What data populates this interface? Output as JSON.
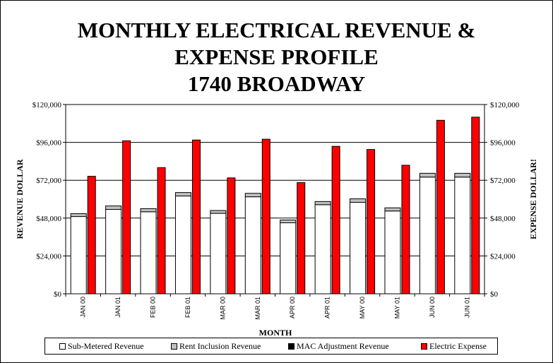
{
  "title_lines": [
    "MONTHLY ELECTRICAL REVENUE &",
    "EXPENSE PROFILE",
    "1740 BROADWAY"
  ],
  "chart_data": {
    "type": "bar",
    "title": "MONTHLY ELECTRICAL REVENUE & EXPENSE PROFILE 1740 BROADWAY",
    "xlabel": "MONTH",
    "ylabel": "REVENUE DOLLAR",
    "y2label": "EXPENSE DOLLAR!",
    "ylim": [
      0,
      120000
    ],
    "y_ticks": [
      "$0",
      "$24,000",
      "$48,000",
      "$72,000",
      "$96,000",
      "$120,000"
    ],
    "y_tick_values": [
      0,
      24000,
      48000,
      72000,
      96000,
      120000
    ],
    "categories": [
      "JAN 00",
      "JAN 01",
      "FEB 00",
      "FEB 01",
      "MAR 00",
      "MAR 01",
      "APR 00",
      "APR 01",
      "MAY 00",
      "MAY 01",
      "JUN 00",
      "JUN 01"
    ],
    "stacked_series_names": [
      "Sub-Metered Revenue",
      "Rent Inclusion Revenue",
      "MAC Adjustment Revenue"
    ],
    "series": [
      {
        "name": "Sub-Metered Revenue",
        "color": "#ffffff",
        "values": [
          49000,
          53500,
          52000,
          62000,
          51000,
          61500,
          45000,
          56500,
          58000,
          52500,
          74000,
          74000
        ]
      },
      {
        "name": "Rent Inclusion Revenue",
        "color": "#c0c0c0",
        "values": [
          1800,
          2200,
          2000,
          2200,
          1800,
          2200,
          1800,
          2000,
          2200,
          2000,
          2400,
          2400
        ]
      },
      {
        "name": "MAC Adjustment Revenue",
        "color": "#000000",
        "values": [
          0,
          0,
          0,
          0,
          0,
          0,
          0,
          0,
          0,
          0,
          0,
          0
        ]
      },
      {
        "name": "Electric Expense",
        "color": "#ff0000",
        "values": [
          74500,
          97000,
          80000,
          97500,
          73500,
          98000,
          70500,
          93500,
          91500,
          81500,
          110000,
          112000
        ]
      }
    ],
    "grid": true,
    "legend_position": "bottom"
  }
}
